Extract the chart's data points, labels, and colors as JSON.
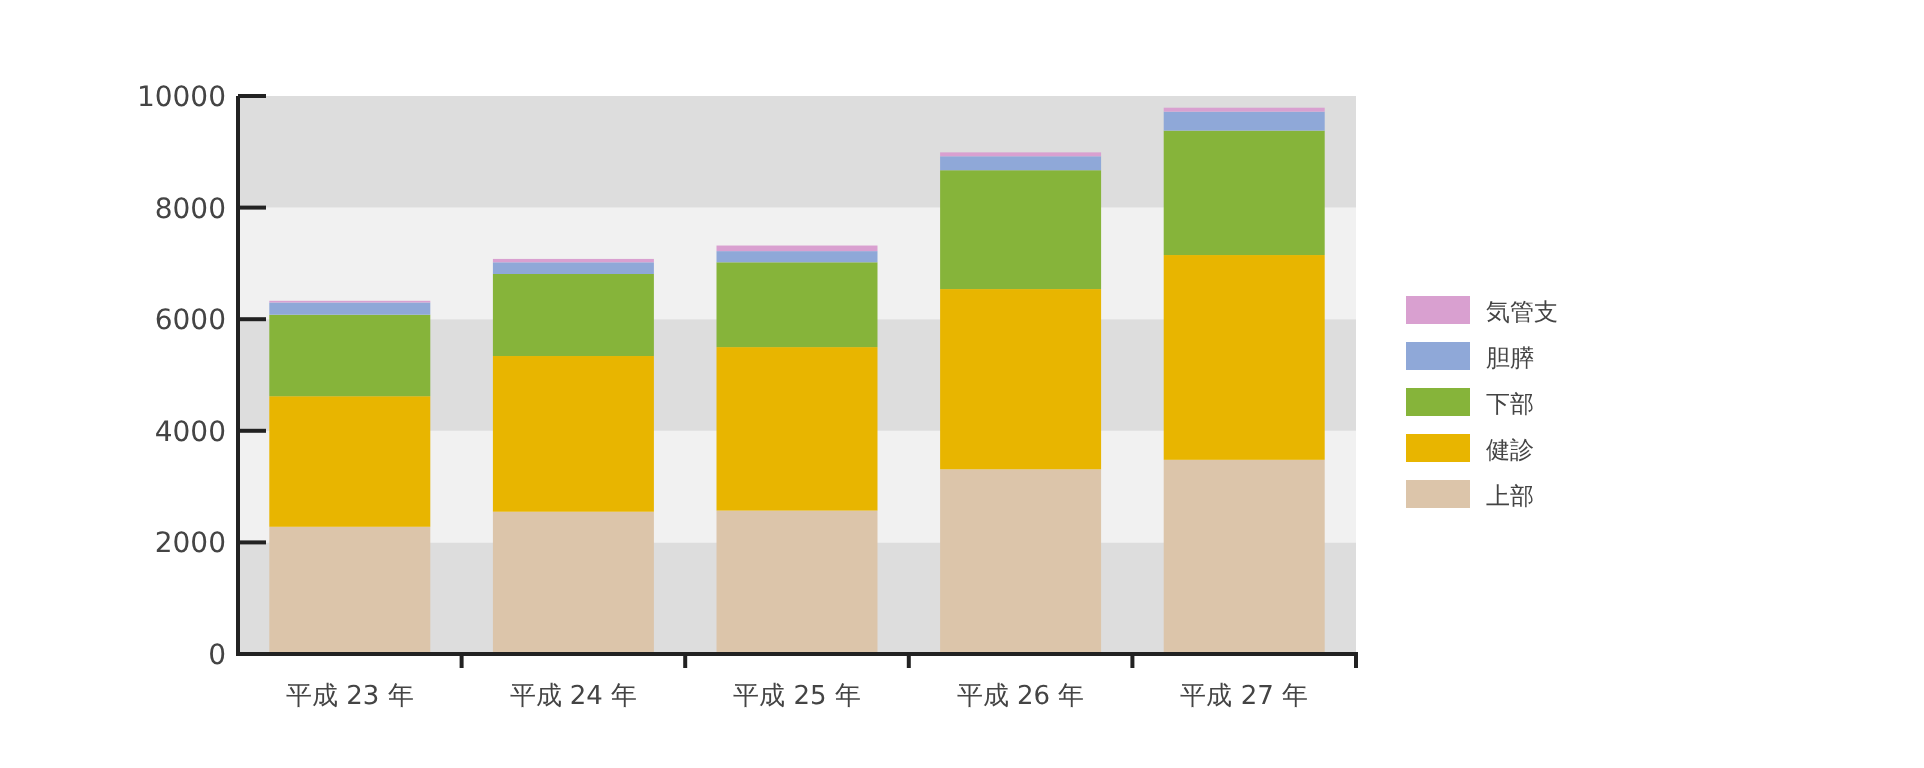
{
  "chart_data": {
    "type": "bar",
    "stacked": true,
    "legend": "right",
    "bands": [
      {
        "axis": "y",
        "from": 0,
        "to": 2000,
        "color": "#dddddd"
      },
      {
        "axis": "y",
        "from": 2000,
        "to": 4000,
        "color": "#f1f1f1"
      },
      {
        "axis": "y",
        "from": 4000,
        "to": 6000,
        "color": "#dddddd"
      },
      {
        "axis": "y",
        "from": 6000,
        "to": 8000,
        "color": "#f1f1f1"
      },
      {
        "axis": "y",
        "from": 8000,
        "to": 10000,
        "color": "#dddddd"
      }
    ],
    "categories": [
      "平成 23 年",
      "平成 24 年",
      "平成 25 年",
      "平成 26 年",
      "平成 27 年"
    ],
    "ylim": [
      0,
      10000
    ],
    "yticks": [
      0,
      2000,
      4000,
      6000,
      8000,
      10000
    ],
    "series": [
      {
        "name": "上部",
        "color": "#dcc5aa",
        "values": [
          2280,
          2550,
          2570,
          3310,
          3480
        ]
      },
      {
        "name": "健診",
        "color": "#e8b500",
        "values": [
          2340,
          2790,
          2930,
          3230,
          3670
        ]
      },
      {
        "name": "下部",
        "color": "#86b43a",
        "values": [
          1460,
          1470,
          1520,
          2130,
          2230
        ]
      },
      {
        "name": "胆膵",
        "color": "#8fa8d8",
        "values": [
          220,
          210,
          200,
          250,
          340
        ]
      },
      {
        "name": "気管支",
        "color": "#d9a0d0",
        "values": [
          30,
          60,
          100,
          70,
          70
        ]
      }
    ]
  }
}
